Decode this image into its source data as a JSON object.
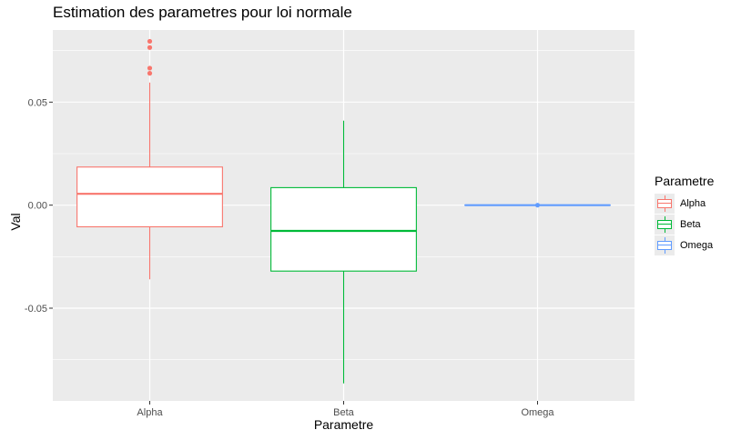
{
  "chart_data": {
    "type": "boxplot",
    "title": "Estimation des parametres pour loi normale",
    "xlabel": "Parametre",
    "ylabel": "Val",
    "categories": [
      "Alpha",
      "Beta",
      "Omega"
    ],
    "ylim": [
      -0.095,
      0.085
    ],
    "yticks": [
      -0.05,
      0.0,
      0.05
    ],
    "ytick_labels": [
      "-0.05",
      "0.00",
      "0.05"
    ],
    "legend_title": "Parametre",
    "legend_position": "right",
    "grid": true,
    "boxes": [
      {
        "name": "Alpha",
        "color": "#F8766D",
        "whisker_low": -0.036,
        "q1": -0.0105,
        "median": 0.0055,
        "q3": 0.0185,
        "whisker_high": 0.0595,
        "outliers": [
          0.064,
          0.0665,
          0.0765,
          0.0795
        ]
      },
      {
        "name": "Beta",
        "color": "#00BA38",
        "whisker_low": -0.0865,
        "q1": -0.032,
        "median": -0.0125,
        "q3": 0.0085,
        "whisker_high": 0.041,
        "outliers": []
      },
      {
        "name": "Omega",
        "color": "#619CFF",
        "whisker_low": 0.0,
        "q1": 0.0,
        "median": 0.0,
        "q3": 0.0,
        "whisker_high": 0.0,
        "outliers": []
      }
    ]
  }
}
